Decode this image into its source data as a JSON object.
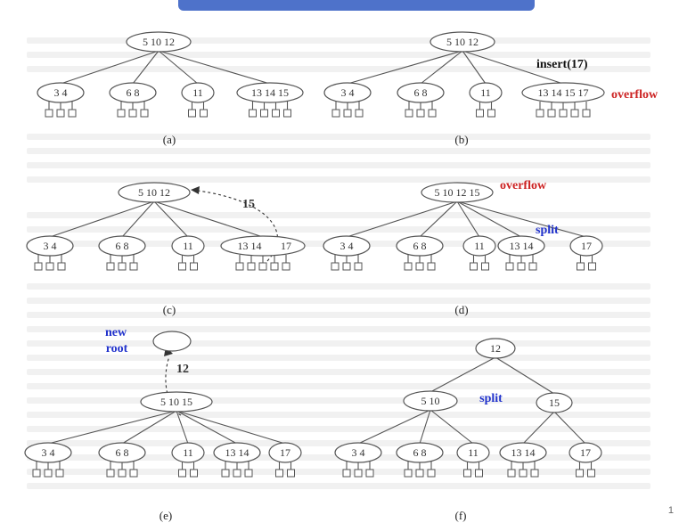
{
  "colors": {
    "stroke": "#555555",
    "red": "#cc2222",
    "blue": "#2233cc",
    "black": "#111111",
    "heading": "#3b63c4"
  },
  "panels": {
    "a": {
      "caption": "(a)",
      "root": "5 10 12",
      "children": [
        "3  4",
        "6  8",
        "11",
        "13 14 15"
      ],
      "notes": []
    },
    "b": {
      "caption": "(b)",
      "root": "5 10 12",
      "children": [
        "3  4",
        "6  8",
        "11",
        "13 14 15 17"
      ],
      "notes": [
        "insert(17)",
        "overflow"
      ]
    },
    "c": {
      "caption": "(c)",
      "root": "5 10 12",
      "children": [
        "3  4",
        "6  8",
        "11",
        "13 14",
        "17"
      ],
      "notes": [
        "15"
      ]
    },
    "d": {
      "caption": "(d)",
      "root": "5 10 12 15",
      "children": [
        "3  4",
        "6  8",
        "11",
        "13 14",
        "17"
      ],
      "notes": [
        "overflow",
        "split"
      ]
    },
    "e": {
      "caption": "(e)",
      "new_root": "",
      "root": "5 10      15",
      "children": [
        "3  4",
        "6  8",
        "11",
        "13 14",
        "17"
      ],
      "notes": [
        "new",
        "root",
        "12"
      ]
    },
    "f": {
      "caption": "(f)",
      "root": "12",
      "middle": [
        "5  10",
        "15"
      ],
      "children": [
        "3  4",
        "6  8",
        "11",
        "13 14",
        "17"
      ],
      "notes": [
        "split"
      ]
    }
  },
  "page_number": "1"
}
